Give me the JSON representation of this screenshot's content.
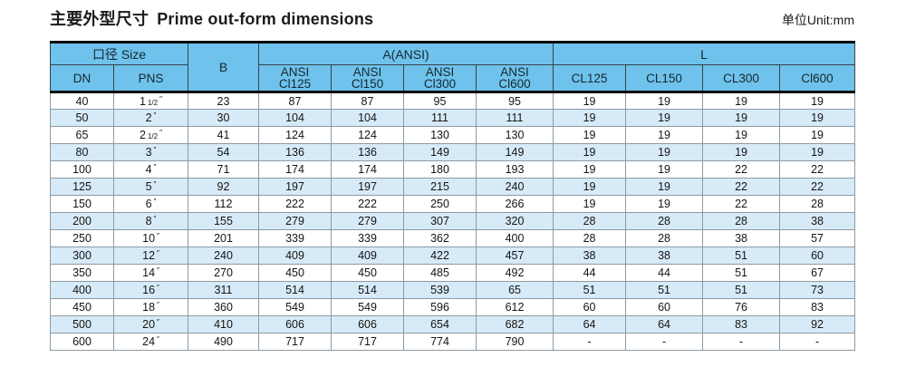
{
  "page": {
    "title_zh": "主要外型尺寸",
    "title_en": "Prime out-form dimensions",
    "unit_label": "单位Unit:mm"
  },
  "colors": {
    "header_bg": "#6FC2EB",
    "stripe_bg": "#D7EAF7"
  },
  "table": {
    "pns_unit": "″",
    "header": {
      "size_group": "口径 Size",
      "dn": "DN",
      "pns": "PNS",
      "b": "B",
      "ansi_group": "A(ANSI)",
      "ansi_cols": [
        [
          "ANSI",
          "Cl125"
        ],
        [
          "ANSI",
          "Cl150"
        ],
        [
          "ANSI",
          "Cl300"
        ],
        [
          "ANSI",
          "Cl600"
        ]
      ],
      "l_group": "L",
      "l_cols": [
        "CL125",
        "CL150",
        "CL300",
        "Cl600"
      ]
    },
    "rows": [
      {
        "dn": "40",
        "pns_main": "1",
        "pns_frac": "1/2",
        "b": "23",
        "a": [
          "87",
          "87",
          "95",
          "95"
        ],
        "l": [
          "19",
          "19",
          "19",
          "19"
        ]
      },
      {
        "dn": "50",
        "pns_main": "2",
        "pns_frac": "",
        "b": "30",
        "a": [
          "104",
          "104",
          "111",
          "111"
        ],
        "l": [
          "19",
          "19",
          "19",
          "19"
        ]
      },
      {
        "dn": "65",
        "pns_main": "2",
        "pns_frac": "1/2",
        "b": "41",
        "a": [
          "124",
          "124",
          "130",
          "130"
        ],
        "l": [
          "19",
          "19",
          "19",
          "19"
        ]
      },
      {
        "dn": "80",
        "pns_main": "3",
        "pns_frac": "",
        "b": "54",
        "a": [
          "136",
          "136",
          "149",
          "149"
        ],
        "l": [
          "19",
          "19",
          "19",
          "19"
        ]
      },
      {
        "dn": "100",
        "pns_main": "4",
        "pns_frac": "",
        "b": "71",
        "a": [
          "174",
          "174",
          "180",
          "193"
        ],
        "l": [
          "19",
          "19",
          "22",
          "22"
        ]
      },
      {
        "dn": "125",
        "pns_main": "5",
        "pns_frac": "",
        "b": "92",
        "a": [
          "197",
          "197",
          "215",
          "240"
        ],
        "l": [
          "19",
          "19",
          "22",
          "22"
        ]
      },
      {
        "dn": "150",
        "pns_main": "6",
        "pns_frac": "",
        "b": "112",
        "a": [
          "222",
          "222",
          "250",
          "266"
        ],
        "l": [
          "19",
          "19",
          "22",
          "28"
        ]
      },
      {
        "dn": "200",
        "pns_main": "8",
        "pns_frac": "",
        "b": "155",
        "a": [
          "279",
          "279",
          "307",
          "320"
        ],
        "l": [
          "28",
          "28",
          "28",
          "38"
        ]
      },
      {
        "dn": "250",
        "pns_main": "10",
        "pns_frac": "",
        "b": "201",
        "a": [
          "339",
          "339",
          "362",
          "400"
        ],
        "l": [
          "28",
          "28",
          "38",
          "57"
        ]
      },
      {
        "dn": "300",
        "pns_main": "12",
        "pns_frac": "",
        "b": "240",
        "a": [
          "409",
          "409",
          "422",
          "457"
        ],
        "l": [
          "38",
          "38",
          "51",
          "60"
        ]
      },
      {
        "dn": "350",
        "pns_main": "14",
        "pns_frac": "",
        "b": "270",
        "a": [
          "450",
          "450",
          "485",
          "492"
        ],
        "l": [
          "44",
          "44",
          "51",
          "67"
        ]
      },
      {
        "dn": "400",
        "pns_main": "16",
        "pns_frac": "",
        "b": "311",
        "a": [
          "514",
          "514",
          "539",
          "65"
        ],
        "l": [
          "51",
          "51",
          "51",
          "73"
        ]
      },
      {
        "dn": "450",
        "pns_main": "18",
        "pns_frac": "",
        "b": "360",
        "a": [
          "549",
          "549",
          "596",
          "612"
        ],
        "l": [
          "60",
          "60",
          "76",
          "83"
        ]
      },
      {
        "dn": "500",
        "pns_main": "20",
        "pns_frac": "",
        "b": "410",
        "a": [
          "606",
          "606",
          "654",
          "682"
        ],
        "l": [
          "64",
          "64",
          "83",
          "92"
        ]
      },
      {
        "dn": "600",
        "pns_main": "24",
        "pns_frac": "",
        "b": "490",
        "a": [
          "717",
          "717",
          "774",
          "790"
        ],
        "l": [
          "-",
          "-",
          "-",
          "-"
        ]
      }
    ]
  }
}
